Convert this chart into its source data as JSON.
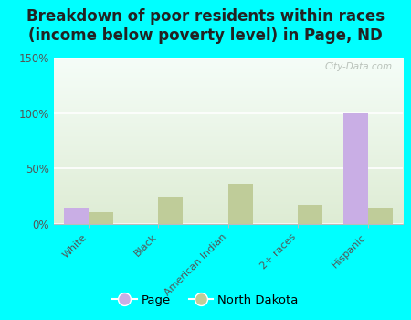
{
  "title": "Breakdown of poor residents within races\n(income below poverty level) in Page, ND",
  "categories": [
    "White",
    "Black",
    "American Indian",
    "2+ races",
    "Hispanic"
  ],
  "page_values": [
    14,
    0,
    0,
    0,
    100
  ],
  "nd_values": [
    11,
    25,
    36,
    17,
    15
  ],
  "page_color": "#c9aee5",
  "nd_color": "#bfcc99",
  "ylim": [
    0,
    150
  ],
  "yticks": [
    0,
    50,
    100,
    150
  ],
  "ytick_labels": [
    "0%",
    "50%",
    "100%",
    "150%"
  ],
  "bg_color_top": "#f0faf8",
  "bg_color_bot": "#e0f0d8",
  "outer_bg": "#00ffff",
  "bar_width": 0.35,
  "legend_labels": [
    "Page",
    "North Dakota"
  ],
  "watermark": "City-Data.com",
  "title_fontsize": 12,
  "title_color": "#222222"
}
